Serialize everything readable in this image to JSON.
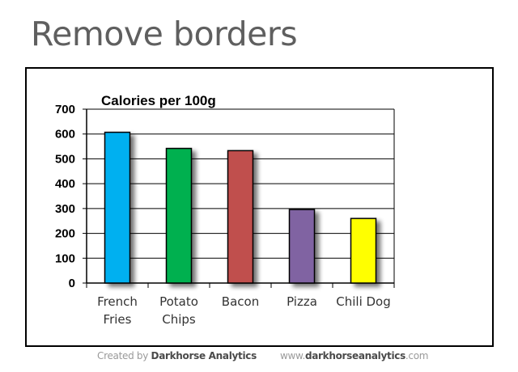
{
  "slide": {
    "title": "Remove borders",
    "footer_left_prefix": "Created by ",
    "footer_left_brand": "Darkhorse Analytics",
    "footer_right_prefix": "www.",
    "footer_right_brand": "darkhorseanalytics",
    "footer_right_suffix": ".com"
  },
  "chart_data": {
    "type": "bar",
    "title": "Calories per 100g",
    "categories": [
      [
        "French",
        "Fries"
      ],
      [
        "Potato",
        "Chips"
      ],
      [
        "Bacon"
      ],
      [
        "Pizza"
      ],
      [
        "Chili Dog"
      ]
    ],
    "values": [
      607,
      542,
      533,
      296,
      260
    ],
    "colors": [
      "#00b0f0",
      "#00b050",
      "#c0504d",
      "#8064a2",
      "#ffff00"
    ],
    "ylim": [
      0,
      700
    ],
    "yticks": [
      0,
      100,
      200,
      300,
      400,
      500,
      600,
      700
    ],
    "xlabel": "",
    "ylabel": "",
    "grid": true,
    "legend": "none"
  }
}
